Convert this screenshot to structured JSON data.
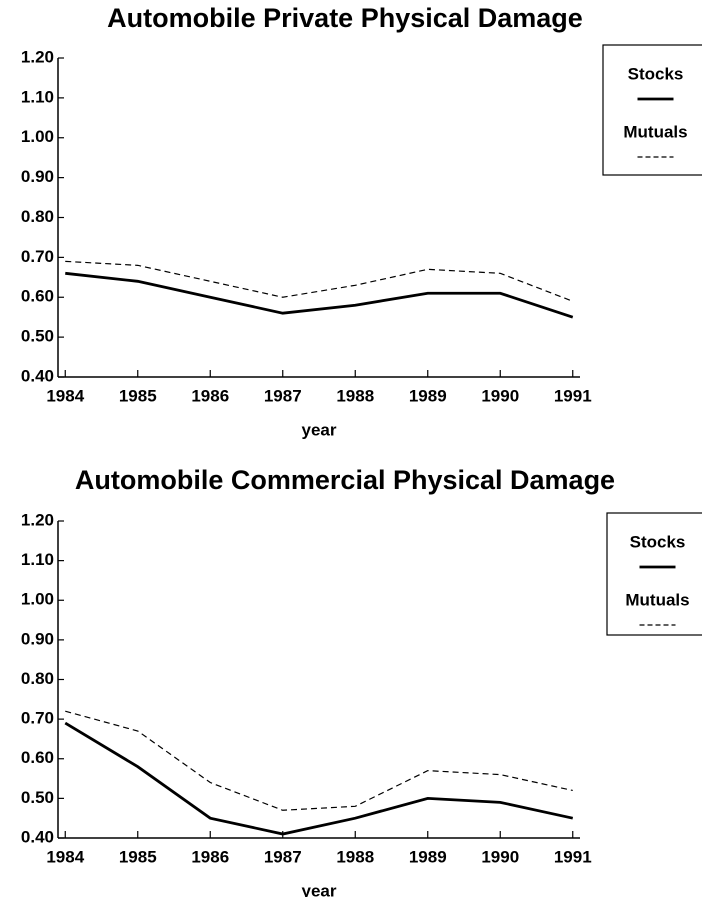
{
  "chart_data": [
    {
      "type": "line",
      "title": "Automobile Private Physical Damage",
      "x_label": "year",
      "x": [
        1984,
        1985,
        1986,
        1987,
        1988,
        1989,
        1990,
        1991
      ],
      "xlim": [
        1983.9,
        1991.1
      ],
      "xticks": [
        1984,
        1985,
        1986,
        1987,
        1988,
        1989,
        1990,
        1991
      ],
      "ylim": [
        0.4,
        1.2
      ],
      "yticks": [
        {
          "value": 0.4,
          "label": "0.40"
        },
        {
          "value": 0.5,
          "label": "0.50"
        },
        {
          "value": 0.6,
          "label": "0.60"
        },
        {
          "value": 0.7,
          "label": "0.70"
        },
        {
          "value": 0.8,
          "label": "0.80"
        },
        {
          "value": 0.9,
          "label": "0.90"
        },
        {
          "value": 1.0,
          "label": "1.00"
        },
        {
          "value": 1.1,
          "label": "1.10"
        },
        {
          "value": 1.2,
          "label": "1.20"
        }
      ],
      "legend": "upper right",
      "series": [
        {
          "name": "Stocks",
          "color": "#000000",
          "line_style": "solid",
          "values": [
            0.66,
            0.64,
            0.6,
            0.56,
            0.58,
            0.61,
            0.61,
            0.55
          ]
        },
        {
          "name": "Mutuals",
          "color": "#000000",
          "line_style": "dashed",
          "values": [
            0.69,
            0.68,
            0.64,
            0.6,
            0.63,
            0.67,
            0.66,
            0.59
          ]
        }
      ]
    },
    {
      "type": "line",
      "title": "Automobile Commercial Physical Damage",
      "x_label": "year",
      "x": [
        1984,
        1985,
        1986,
        1987,
        1988,
        1989,
        1990,
        1991
      ],
      "xlim": [
        1983.9,
        1991.1
      ],
      "xticks": [
        1984,
        1985,
        1986,
        1987,
        1988,
        1989,
        1990,
        1991
      ],
      "ylim": [
        0.4,
        1.2
      ],
      "yticks": [
        {
          "value": 0.4,
          "label": "0.40"
        },
        {
          "value": 0.5,
          "label": "0.50"
        },
        {
          "value": 0.6,
          "label": "0.60"
        },
        {
          "value": 0.7,
          "label": "0.70"
        },
        {
          "value": 0.8,
          "label": "0.80"
        },
        {
          "value": 0.9,
          "label": "0.90"
        },
        {
          "value": 1.0,
          "label": "1.00"
        },
        {
          "value": 1.1,
          "label": "1.10"
        },
        {
          "value": 1.2,
          "label": "1.20"
        }
      ],
      "legend": "upper right",
      "series": [
        {
          "name": "Stocks",
          "color": "#000000",
          "line_style": "solid",
          "values": [
            0.69,
            0.58,
            0.45,
            0.41,
            0.45,
            0.5,
            0.49,
            0.45
          ]
        },
        {
          "name": "Mutuals",
          "color": "#000000",
          "line_style": "dashed",
          "values": [
            0.72,
            0.67,
            0.54,
            0.47,
            0.48,
            0.57,
            0.56,
            0.52
          ]
        }
      ]
    }
  ]
}
